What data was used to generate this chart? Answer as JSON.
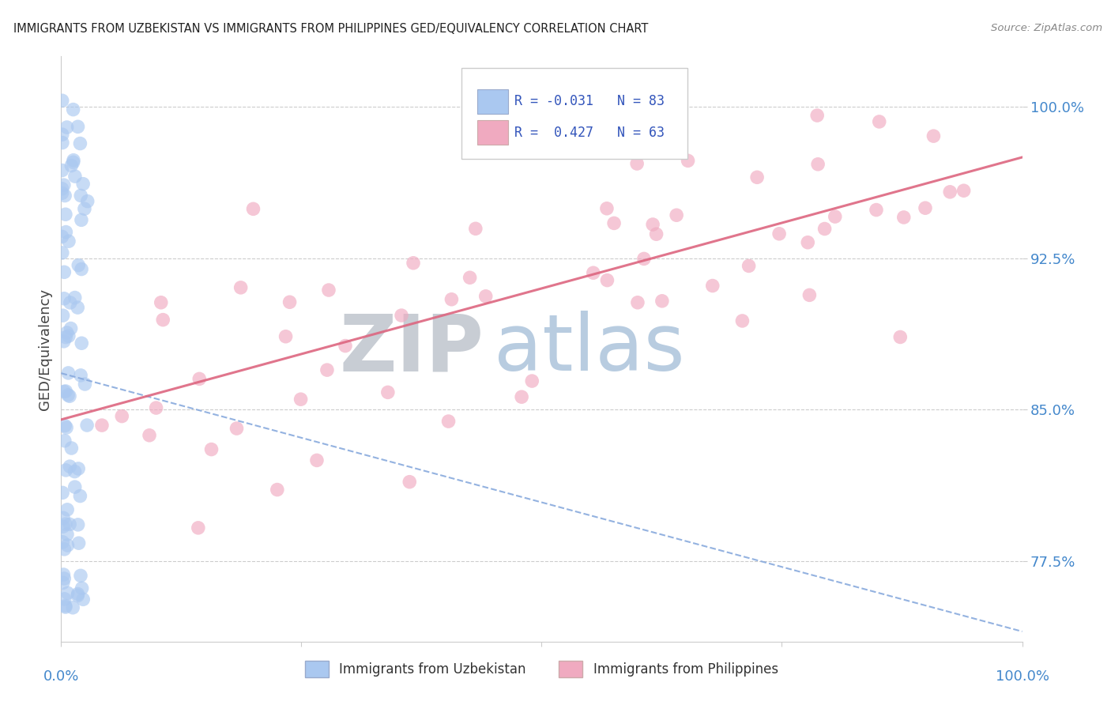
{
  "title": "IMMIGRANTS FROM UZBEKISTAN VS IMMIGRANTS FROM PHILIPPINES GED/EQUIVALENCY CORRELATION CHART",
  "source": "Source: ZipAtlas.com",
  "ylabel": "GED/Equivalency",
  "yticks": [
    0.775,
    0.85,
    0.925,
    1.0
  ],
  "ytick_labels": [
    "77.5%",
    "85.0%",
    "92.5%",
    "100.0%"
  ],
  "xmin": 0.0,
  "xmax": 1.0,
  "ymin": 0.735,
  "ymax": 1.025,
  "r_uz": -0.031,
  "n_uz": 83,
  "r_ph": 0.427,
  "n_ph": 63,
  "color_uzbekistan": "#aac8f0",
  "color_philippines": "#f0aac0",
  "color_uzbekistan_line": "#88aadd",
  "color_philippines_line": "#dd6680",
  "color_axis_labels": "#4488cc",
  "color_title": "#222222",
  "color_source": "#888888",
  "color_legend_text": "#3355bb",
  "uz_line_x0": 0.0,
  "uz_line_y0": 0.868,
  "uz_line_x1": 1.0,
  "uz_line_y1": 0.74,
  "ph_line_x0": 0.0,
  "ph_line_y0": 0.845,
  "ph_line_x1": 1.0,
  "ph_line_y1": 0.975
}
